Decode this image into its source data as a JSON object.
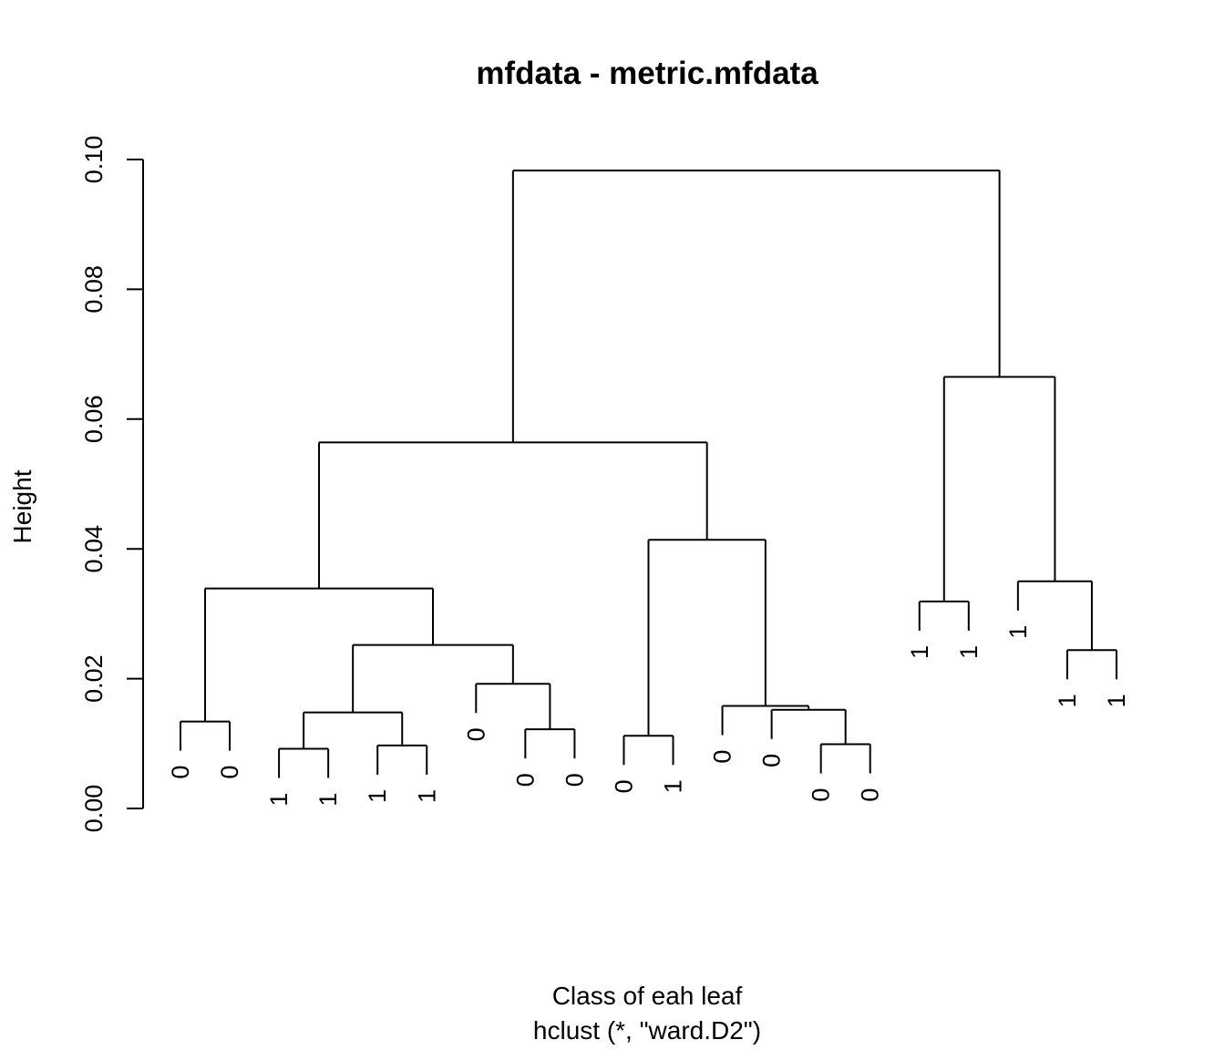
{
  "chart_data": {
    "type": "dendrogram",
    "title": "mfdata - metric.mfdata",
    "xlabel": "Class of eah leaf",
    "sub": "hclust (*, \"ward.D2\")",
    "ylabel": "Height",
    "ylim": [
      0,
      0.1
    ],
    "yticks": [
      "0.00",
      "0.02",
      "0.04",
      "0.06",
      "0.08",
      "0.10"
    ],
    "ytick_values": [
      0,
      0.02,
      0.04,
      0.06,
      0.08,
      0.1
    ],
    "leaves": [
      "0",
      "0",
      "1",
      "1",
      "1",
      "1",
      "0",
      "0",
      "0",
      "0",
      "1",
      "0",
      "0",
      "0",
      "0",
      "1",
      "1",
      "1",
      "1",
      "1"
    ],
    "merges": [
      {
        "left": "L0",
        "right": "L1",
        "height": 0.0134
      },
      {
        "left": "L2",
        "right": "L3",
        "height": 0.0092
      },
      {
        "left": "L4",
        "right": "L5",
        "height": 0.0097
      },
      {
        "left": "M1",
        "right": "M2",
        "height": 0.0148
      },
      {
        "left": "L7",
        "right": "L8",
        "height": 0.0122
      },
      {
        "left": "L6",
        "right": "M4",
        "height": 0.0192
      },
      {
        "left": "M3",
        "right": "M5",
        "height": 0.0252
      },
      {
        "left": "M0",
        "right": "M6",
        "height": 0.0339
      },
      {
        "left": "L9",
        "right": "L10",
        "height": 0.0112
      },
      {
        "left": "L13",
        "right": "L14",
        "height": 0.0099
      },
      {
        "left": "L12",
        "right": "M9",
        "height": 0.0152
      },
      {
        "left": "L11",
        "right": "M10",
        "height": 0.0158
      },
      {
        "left": "M8",
        "right": "M11",
        "height": 0.0414
      },
      {
        "left": "M7",
        "right": "M12",
        "height": 0.0564
      },
      {
        "left": "L15",
        "right": "L16",
        "height": 0.0319
      },
      {
        "left": "L18",
        "right": "L19",
        "height": 0.0244
      },
      {
        "left": "L17",
        "right": "M15",
        "height": 0.035
      },
      {
        "left": "M14",
        "right": "M16",
        "height": 0.0665
      },
      {
        "left": "M13",
        "right": "M17",
        "height": 0.0983
      }
    ]
  }
}
